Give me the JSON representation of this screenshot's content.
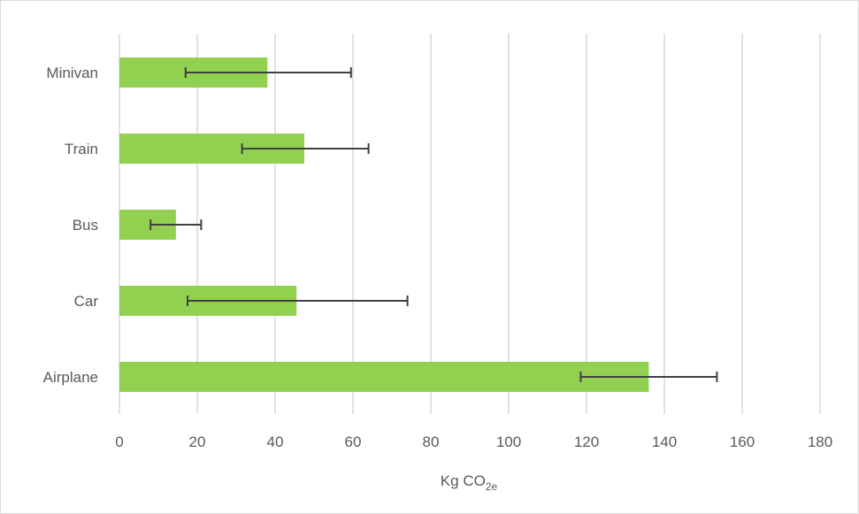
{
  "chart_data": {
    "type": "bar",
    "orientation": "horizontal",
    "title": "",
    "xlabel": "Kg CO",
    "xlabel_subscript": "2e",
    "ylabel": "",
    "categories": [
      "Minivan",
      "Train",
      "Bus",
      "Car",
      "Airplane"
    ],
    "values": [
      38,
      47.5,
      14.5,
      45.5,
      136
    ],
    "error_low": [
      17,
      31.5,
      8,
      17.5,
      118.5
    ],
    "error_high": [
      59.5,
      64,
      21,
      74,
      153.5
    ],
    "xlim": [
      0,
      180
    ],
    "xticks": [
      0,
      20,
      40,
      60,
      80,
      100,
      120,
      140,
      160,
      180
    ],
    "xtick_labels": [
      "0",
      "20",
      "40",
      "60",
      "80",
      "100",
      "120",
      "140",
      "160",
      "180"
    ],
    "grid": true,
    "legend": "none",
    "colors": {
      "bar": "#92d050",
      "error_bar": "#404040",
      "grid": "#d9d9d9",
      "text": "#595959"
    }
  }
}
